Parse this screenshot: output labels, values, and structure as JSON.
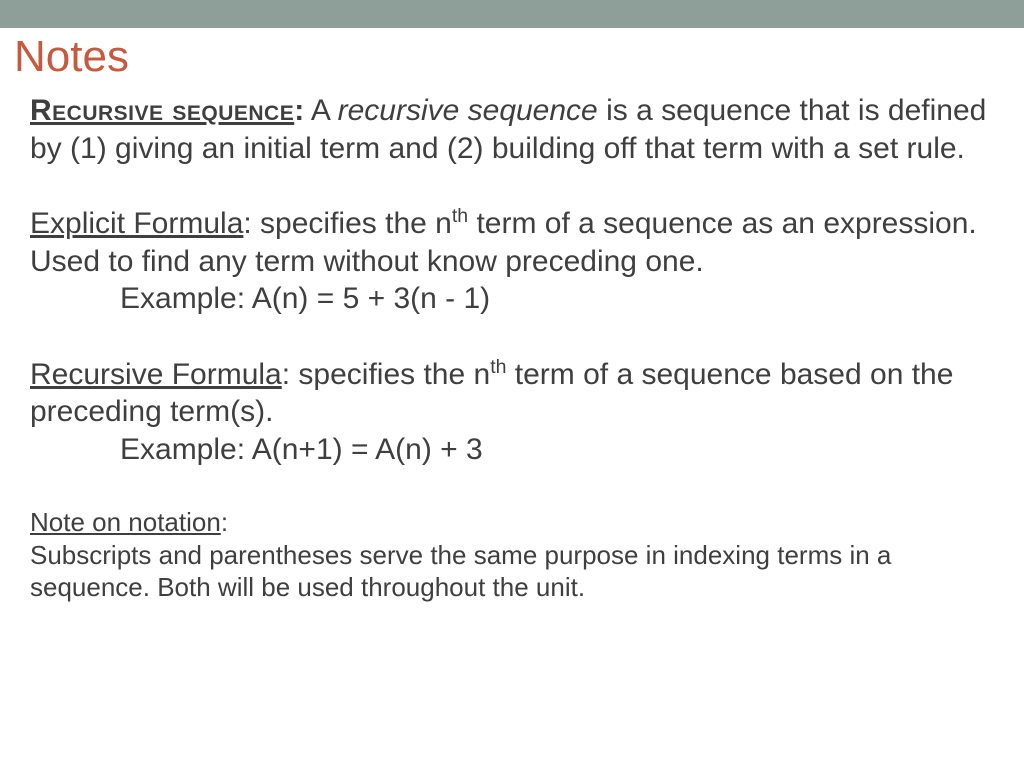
{
  "colors": {
    "top_bar": "#8e9e99",
    "title": "#c55a3f",
    "body_text": "#3f3f3f",
    "background": "#ffffff"
  },
  "typography": {
    "title_fontsize": 44,
    "body_fontsize": 30,
    "small_fontsize": 26,
    "font_family": "Arial"
  },
  "title": "Notes",
  "sections": {
    "recursive_sequence": {
      "label": "Recursive sequence",
      "colon": ":",
      "lead": "  A ",
      "italic": "recursive sequence",
      "rest": " is a sequence that is defined by (1) giving an initial term and (2) building off that term with a set rule."
    },
    "explicit_formula": {
      "label": "Explicit Formula",
      "desc1": ": specifies the n",
      "sup": "th",
      "desc2": " term of a sequence as an expression. Used to find any term without know preceding one.",
      "example": "Example: A(n) = 5 + 3(n - 1)"
    },
    "recursive_formula": {
      "label": "Recursive Formula",
      "desc1": ": specifies the n",
      "sup": "th",
      "desc2": " term of a sequence based on the preceding term(s).",
      "example": "Example: A(n+1) = A(n) + 3"
    },
    "notation": {
      "label": "Note on notation",
      "colon": ":",
      "body": "Subscripts and parentheses serve the same purpose in indexing terms in a sequence. Both will be used throughout the unit."
    }
  }
}
